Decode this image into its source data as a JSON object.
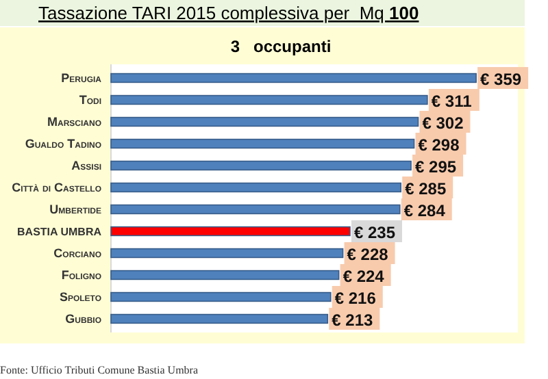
{
  "chart_data": {
    "type": "bar",
    "orientation": "horizontal",
    "title": "Tassazione TARI 2015 complessiva per  Mq 100",
    "subtitle": "3   occupanti",
    "categories": [
      "Perugia",
      "Todi",
      "Marsciano",
      "Gualdo Tadino",
      "Assisi",
      "Città di Castello",
      "Umbertide",
      "BASTIA UMBRA",
      "Corciano",
      "Foligno",
      "Spoleto",
      "Gubbio"
    ],
    "values": [
      359,
      311,
      302,
      298,
      295,
      285,
      284,
      235,
      228,
      224,
      216,
      213
    ],
    "value_labels": [
      "€ 359",
      "€ 311",
      "€ 302",
      "€ 298",
      "€ 295",
      "€ 285",
      "€ 284",
      "€ 235",
      "€ 228",
      "€ 224",
      "€ 216",
      "€ 213"
    ],
    "colors": [
      "#4f81bd",
      "#4f81bd",
      "#4f81bd",
      "#4f81bd",
      "#4f81bd",
      "#4f81bd",
      "#4f81bd",
      "#ff0000",
      "#4f81bd",
      "#4f81bd",
      "#4f81bd",
      "#4f81bd"
    ],
    "xlim": [
      0,
      400
    ],
    "tick_labels": "y",
    "annotations": [
      "Fonte: Ufficio Tributi Comune Bastia Umbra"
    ]
  }
}
